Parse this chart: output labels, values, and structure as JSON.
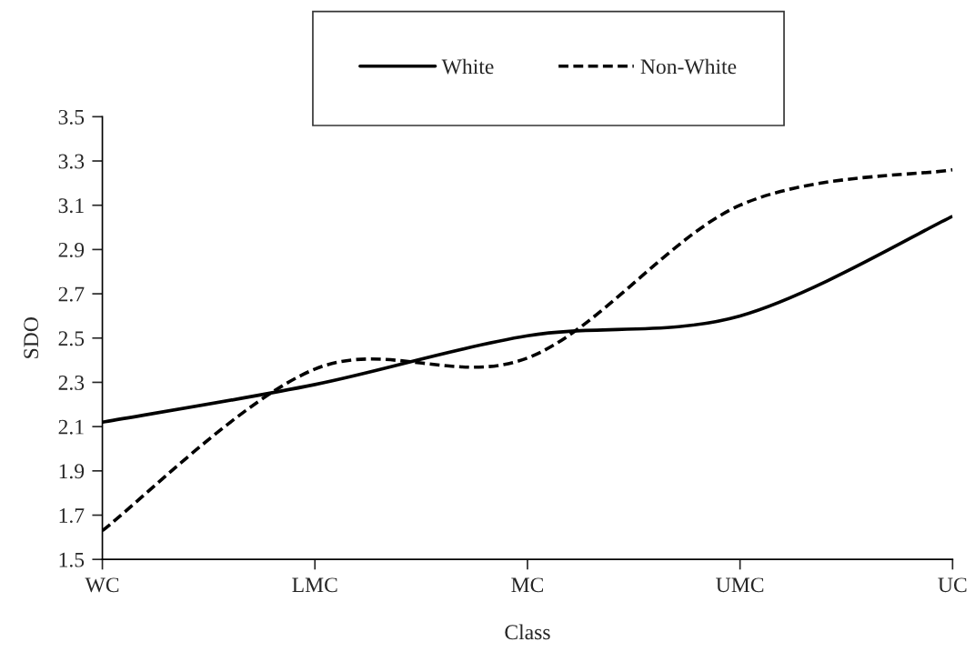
{
  "chart_data": {
    "type": "line",
    "xlabel": "Class",
    "ylabel": "SDO",
    "categories": [
      "WC",
      "LMC",
      "MC",
      "UMC",
      "UC"
    ],
    "series": [
      {
        "name": "White",
        "color": "#000000",
        "line_style": "solid",
        "values": [
          2.12,
          2.29,
          2.51,
          2.6,
          3.05
        ]
      },
      {
        "name": "Non-White",
        "color": "#000000",
        "line_style": "dashed",
        "values": [
          1.63,
          2.36,
          2.41,
          3.1,
          3.26
        ]
      }
    ],
    "ylim": [
      1.5,
      3.5
    ],
    "yticks": [
      {
        "value": 1.5,
        "label": "1.5"
      },
      {
        "value": 1.7,
        "label": "1.7"
      },
      {
        "value": 1.9,
        "label": "1.9"
      },
      {
        "value": 2.1,
        "label": "2.1"
      },
      {
        "value": 2.3,
        "label": "2.3"
      },
      {
        "value": 2.5,
        "label": "2.5"
      },
      {
        "value": 2.7,
        "label": "2.7"
      },
      {
        "value": 2.9,
        "label": "2.9"
      },
      {
        "value": 3.1,
        "label": "3.1"
      },
      {
        "value": 3.3,
        "label": "3.3"
      },
      {
        "value": 3.5,
        "label": "3.5"
      }
    ],
    "grid": false,
    "legend": "top",
    "marker": "none"
  }
}
